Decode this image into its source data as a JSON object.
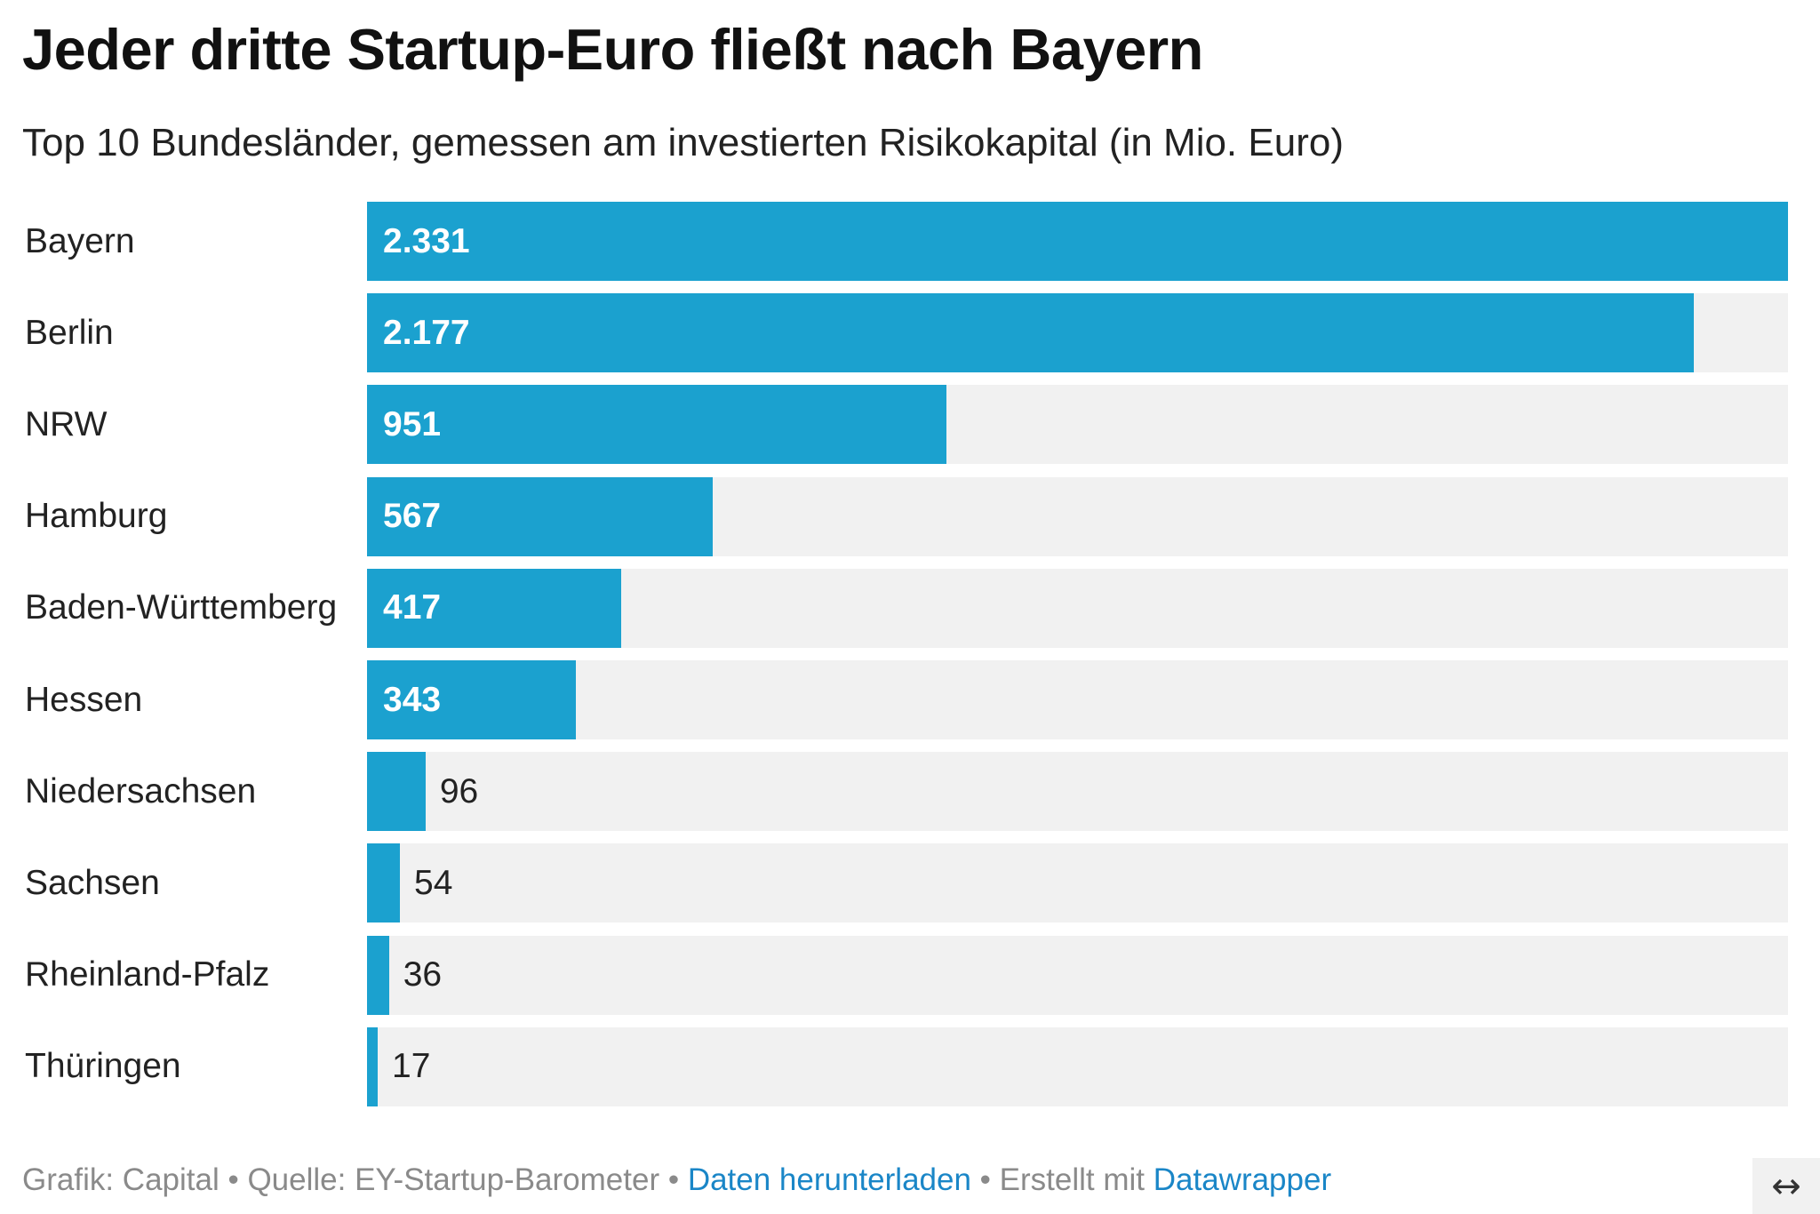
{
  "title": "Jeder dritte Startup-Euro fließt nach Bayern",
  "subtitle": "Top 10 Bundesländer, gemessen am investierten Risikokapital (in Mio. Euro)",
  "colors": {
    "bar": "#1ba1cf",
    "track": "#f1f1f1",
    "link": "#1a86c7"
  },
  "chart_data": {
    "type": "bar",
    "orientation": "horizontal",
    "title": "Jeder dritte Startup-Euro fließt nach Bayern",
    "subtitle": "Top 10 Bundesländer, gemessen am investierten Risikokapital (in Mio. Euro)",
    "categories": [
      "Bayern",
      "Berlin",
      "NRW",
      "Hamburg",
      "Baden-Württemberg",
      "Hessen",
      "Niedersachsen",
      "Sachsen",
      "Rheinland-Pfalz",
      "Thüringen"
    ],
    "values": [
      2331,
      2177,
      951,
      567,
      417,
      343,
      96,
      54,
      36,
      17
    ],
    "value_labels": [
      "2.331",
      "2.177",
      "951",
      "567",
      "417",
      "343",
      "96",
      "54",
      "36",
      "17"
    ],
    "xlim": [
      0,
      2331
    ],
    "grid": false,
    "legend": "none"
  },
  "footer": {
    "credit": "Grafik: Capital",
    "separator": " • ",
    "source": "Quelle: EY-Startup-Barometer",
    "download_link": "Daten herunterladen",
    "made_with": "Erstellt mit",
    "datawrapper_link": "Datawrapper"
  },
  "expand_icon": {
    "name": "expand-horizontal-icon",
    "glyph": "↔"
  }
}
